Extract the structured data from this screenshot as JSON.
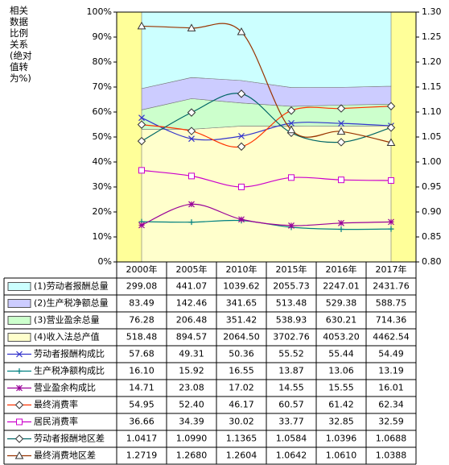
{
  "chart_data": {
    "type": "combo",
    "y_axis_title": "相关数据比例关系(绝对值转为%)",
    "categories": [
      "2000年",
      "2005年",
      "2010年",
      "2015年",
      "2016年",
      "2017年"
    ],
    "ylim": [
      0,
      100
    ],
    "yticks": [
      {
        "value": 0,
        "label": "0%"
      },
      {
        "value": 10,
        "label": "10%"
      },
      {
        "value": 20,
        "label": "20%"
      },
      {
        "value": 30,
        "label": "30%"
      },
      {
        "value": 40,
        "label": "40%"
      },
      {
        "value": 50,
        "label": "50%"
      },
      {
        "value": 60,
        "label": "60%"
      },
      {
        "value": 70,
        "label": "70%"
      },
      {
        "value": 80,
        "label": "80%"
      },
      {
        "value": 90,
        "label": "90%"
      },
      {
        "value": 100,
        "label": "100%"
      }
    ],
    "y2lim": [
      0.8,
      1.3
    ],
    "y2ticks": [
      {
        "value": 0.8,
        "label": "0.80"
      },
      {
        "value": 0.85,
        "label": "0.85"
      },
      {
        "value": 0.9,
        "label": "0.90"
      },
      {
        "value": 0.95,
        "label": "0.95"
      },
      {
        "value": 1.0,
        "label": "1.00"
      },
      {
        "value": 1.05,
        "label": "1.05"
      },
      {
        "value": 1.1,
        "label": "1.10"
      },
      {
        "value": 1.15,
        "label": "1.15"
      },
      {
        "value": 1.2,
        "label": "1.20"
      },
      {
        "value": 1.25,
        "label": "1.25"
      },
      {
        "value": 1.3,
        "label": "1.30"
      }
    ],
    "plot_background": "#ffff99",
    "series": [
      {
        "name": "(1)劳动者报酬总量",
        "type": "area",
        "color": "#ccffff",
        "values": [
          299.08,
          441.07,
          1039.62,
          2055.73,
          2247.01,
          2431.76
        ],
        "value_labels": [
          "299.08",
          "441.07",
          "1039.62",
          "2055.73",
          "2247.01",
          "2431.76"
        ]
      },
      {
        "name": "(2)生产税净额总量",
        "type": "area",
        "color": "#ccccff",
        "values": [
          83.49,
          142.46,
          341.65,
          513.48,
          529.38,
          588.75
        ],
        "value_labels": [
          "83.49",
          "142.46",
          "341.65",
          "513.48",
          "529.38",
          "588.75"
        ]
      },
      {
        "name": "(3)营业盈余总量",
        "type": "area",
        "color": "#ccffcc",
        "values": [
          76.28,
          206.48,
          351.42,
          538.93,
          630.21,
          714.36
        ],
        "value_labels": [
          "76.28",
          "206.48",
          "351.42",
          "538.93",
          "630.21",
          "714.36"
        ]
      },
      {
        "name": "(4)收入法总产值",
        "type": "area",
        "color": "#ffffcc",
        "values": [
          518.48,
          894.57,
          2064.5,
          3702.76,
          4053.2,
          4462.54
        ],
        "value_labels": [
          "518.48",
          "894.57",
          "2064.50",
          "3702.76",
          "4053.20",
          "4462.54"
        ]
      },
      {
        "name": "劳动者报酬构成比",
        "type": "line",
        "marker": "x",
        "color": "#3333cc",
        "values": [
          57.68,
          49.31,
          50.36,
          55.52,
          55.44,
          54.49
        ],
        "value_labels": [
          "57.68",
          "49.31",
          "50.36",
          "55.52",
          "55.44",
          "54.49"
        ]
      },
      {
        "name": "生产税净额构成比",
        "type": "line",
        "marker": "plus",
        "color": "#008080",
        "values": [
          16.1,
          15.92,
          16.55,
          13.87,
          13.06,
          13.19
        ],
        "value_labels": [
          "16.10",
          "15.92",
          "16.55",
          "13.87",
          "13.06",
          "13.19"
        ]
      },
      {
        "name": "营业盈余构成比",
        "type": "line",
        "marker": "star",
        "color": "#990099",
        "values": [
          14.71,
          23.08,
          17.02,
          14.55,
          15.55,
          16.01
        ],
        "value_labels": [
          "14.71",
          "23.08",
          "17.02",
          "14.55",
          "15.55",
          "16.01"
        ]
      },
      {
        "name": "最终消费率",
        "type": "line",
        "marker": "diamond",
        "color": "#ff3300",
        "values": [
          54.95,
          52.4,
          46.17,
          60.57,
          61.42,
          62.34
        ],
        "value_labels": [
          "54.95",
          "52.40",
          "46.17",
          "60.57",
          "61.42",
          "62.34"
        ]
      },
      {
        "name": "居民消费率",
        "type": "line",
        "marker": "square",
        "color": "#cc00cc",
        "values": [
          36.66,
          34.39,
          30.02,
          33.77,
          32.85,
          32.59
        ],
        "value_labels": [
          "36.66",
          "34.39",
          "30.02",
          "33.77",
          "32.85",
          "32.59"
        ]
      },
      {
        "name": "劳动者报酬地区差",
        "type": "line",
        "axis": "y2",
        "marker": "diamond",
        "color": "#006666",
        "values": [
          1.0417,
          1.099,
          1.1365,
          1.0584,
          1.0396,
          1.0688
        ],
        "value_labels": [
          "1.0417",
          "1.0990",
          "1.1365",
          "1.0584",
          "1.0396",
          "1.0688"
        ]
      },
      {
        "name": "最终消费地区差",
        "type": "line",
        "axis": "y2",
        "marker": "triangle",
        "color": "#993300",
        "values": [
          1.2719,
          1.268,
          1.2604,
          1.0642,
          1.061,
          1.0388
        ],
        "value_labels": [
          "1.2719",
          "1.2680",
          "1.2604",
          "1.0642",
          "1.0610",
          "1.0388"
        ]
      }
    ]
  }
}
